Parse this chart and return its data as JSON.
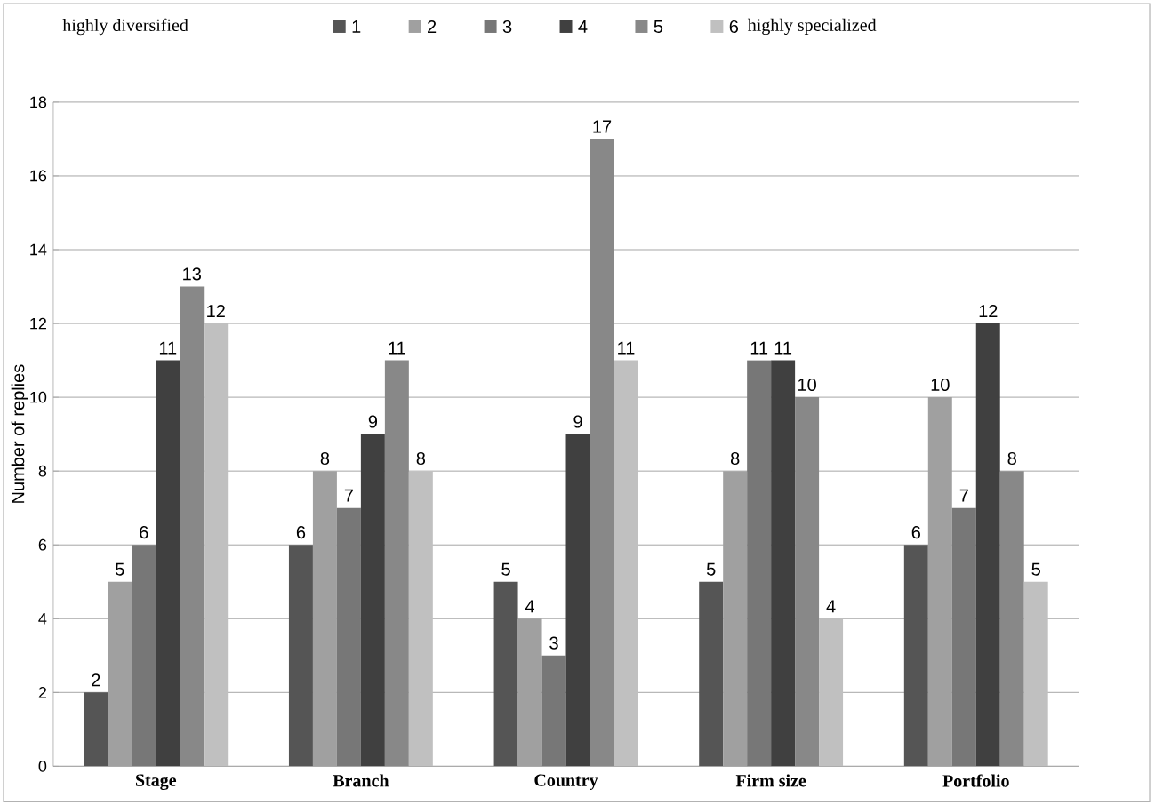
{
  "chart_data": {
    "type": "bar",
    "ylabel": "Number of replies",
    "categories": [
      "Stage",
      "Branch",
      "Country",
      "Firm size",
      "Portfolio"
    ],
    "series": [
      {
        "name": "1",
        "color": "#555555",
        "values": [
          2,
          6,
          5,
          5,
          6
        ]
      },
      {
        "name": "2",
        "color": "#a0a0a0",
        "values": [
          5,
          8,
          4,
          8,
          10
        ]
      },
      {
        "name": "3",
        "color": "#777777",
        "values": [
          6,
          7,
          3,
          11,
          7
        ]
      },
      {
        "name": "4",
        "color": "#404040",
        "values": [
          11,
          9,
          9,
          11,
          12
        ]
      },
      {
        "name": "5",
        "color": "#888888",
        "values": [
          13,
          11,
          17,
          10,
          8
        ]
      },
      {
        "name": "6",
        "color": "#c0c0c0",
        "values": [
          12,
          8,
          11,
          4,
          5
        ]
      }
    ],
    "legend_title": "highly diversified",
    "annotations": [
      "highly specialized"
    ],
    "ylim": [
      0,
      18
    ],
    "yticks": [
      0,
      2,
      4,
      6,
      8,
      10,
      12,
      14,
      16,
      18
    ],
    "grid": "y",
    "legend": "top",
    "data_labels": true
  }
}
